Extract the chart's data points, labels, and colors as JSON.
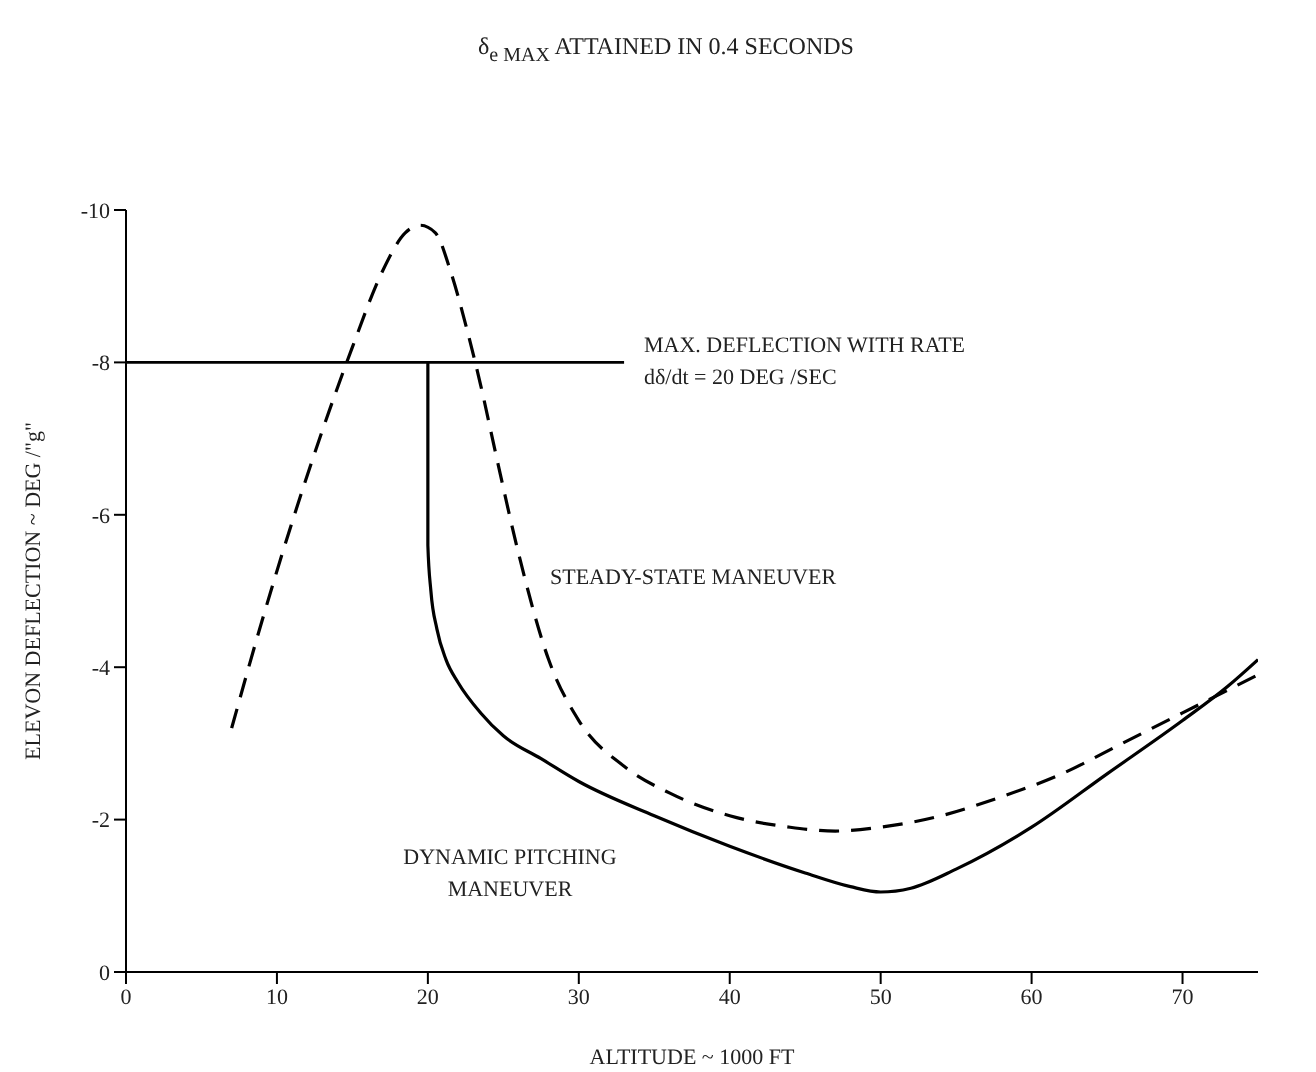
{
  "chart_data": {
    "type": "line",
    "title": "δ$_{e MAX}$ ATTAINED IN 0.4 SECONDS",
    "xlabel": "ALTITUDE ~ 1000 FT",
    "ylabel": "ELEVON DEFLECTION ~ DEG /\"g\"",
    "xlim": [
      0,
      75
    ],
    "xticks": [
      0,
      10,
      20,
      30,
      40,
      50,
      60,
      70
    ],
    "ylim": [
      0,
      -10
    ],
    "yticks": [
      0,
      -2,
      -4,
      -6,
      -8,
      -10
    ],
    "grid": false,
    "marker": "none",
    "series": [
      {
        "name": "STEADY-STATE MANEUVER",
        "color": "#000000",
        "line_style": "dashed",
        "x": [
          7,
          9,
          11,
          13,
          15,
          17,
          18.5,
          19.5,
          20.5,
          21.5,
          22.5,
          23.5,
          24.5,
          26,
          28,
          30,
          33,
          36,
          40,
          44,
          47,
          50,
          54,
          58,
          62,
          66,
          70,
          73,
          75
        ],
        "values": [
          -3.2,
          -4.6,
          -5.9,
          -7.1,
          -8.2,
          -9.2,
          -9.7,
          -9.8,
          -9.7,
          -9.2,
          -8.5,
          -7.7,
          -6.8,
          -5.5,
          -4.1,
          -3.3,
          -2.7,
          -2.35,
          -2.05,
          -1.9,
          -1.85,
          -1.9,
          -2.05,
          -2.3,
          -2.6,
          -3.0,
          -3.4,
          -3.7,
          -3.9
        ]
      },
      {
        "name": "DYNAMIC PITCHING\nMANEUVER",
        "color": "#000000",
        "line_style": "solid",
        "x": [
          20,
          20,
          20.2,
          20.6,
          21.2,
          22,
          23.5,
          25,
          27.5,
          30,
          35,
          40,
          45,
          48,
          50,
          52,
          55,
          60,
          65,
          70,
          73,
          75
        ],
        "values": [
          -8,
          -5.6,
          -5.0,
          -4.5,
          -4.1,
          -3.8,
          -3.4,
          -3.1,
          -2.8,
          -2.5,
          -2.05,
          -1.65,
          -1.3,
          -1.12,
          -1.05,
          -1.1,
          -1.35,
          -1.9,
          -2.6,
          -3.3,
          -3.75,
          -4.1
        ]
      }
    ],
    "ref_lines": [
      {
        "axis": "y",
        "value": -8,
        "color": "#000000"
      }
    ],
    "annotations": [
      "MAX. DEFLECTION WITH RATE\ndδ/dt = 20 DEG /SEC"
    ]
  }
}
